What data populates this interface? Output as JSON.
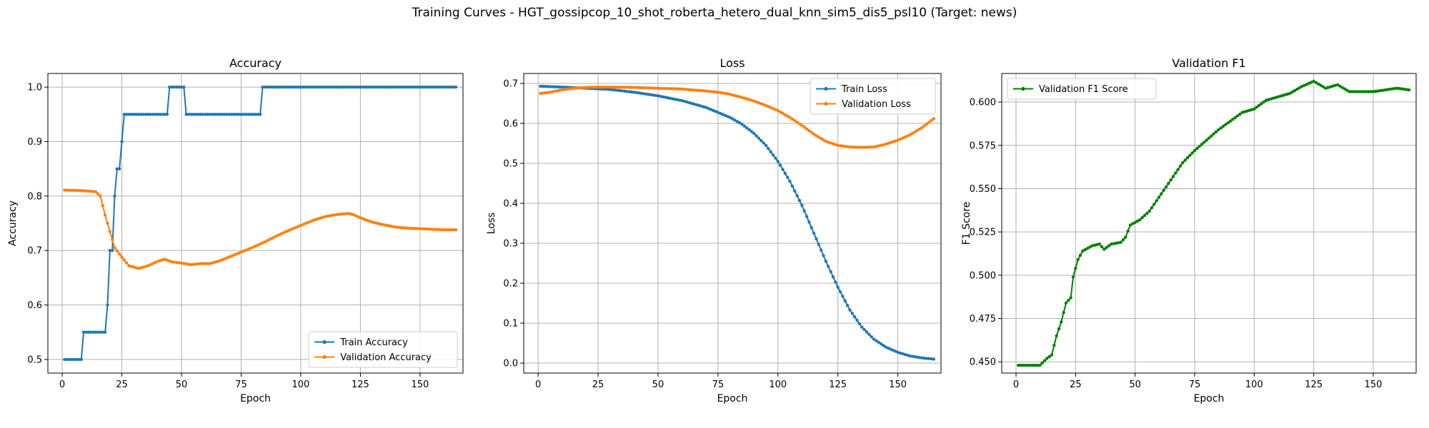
{
  "suptitle": "Training Curves - HGT_gossipcop_10_shot_roberta_hetero_dual_knn_sim5_dis5_psl10 (Target: news)",
  "colors": {
    "blue": "#1f77b4",
    "orange": "#ff7f0e",
    "green": "#008000",
    "grid": "#b0b0b0"
  },
  "chart_data": [
    {
      "type": "line",
      "title": "Accuracy",
      "xlabel": "Epoch",
      "ylabel": "Accuracy",
      "xlim": [
        -6,
        168
      ],
      "ylim": [
        0.475,
        1.025
      ],
      "xticks": [
        0,
        25,
        50,
        75,
        100,
        125,
        150
      ],
      "yticks": [
        0.5,
        0.6,
        0.7,
        0.8,
        0.9,
        1.0
      ],
      "ytick_labels": [
        "0.5",
        "0.6",
        "0.7",
        "0.8",
        "0.9",
        "1.0"
      ],
      "grid": true,
      "legend_position": "lower-right",
      "series": [
        {
          "name": "Train Accuracy",
          "color": "#1f77b4",
          "steps": [
            [
              1,
              0.5
            ],
            [
              9,
              0.55
            ],
            [
              19,
              0.6
            ],
            [
              20,
              0.7
            ],
            [
              22,
              0.8
            ],
            [
              23,
              0.85
            ],
            [
              25,
              0.9
            ],
            [
              26,
              0.95
            ],
            [
              45,
              1.0
            ],
            [
              52,
              0.95
            ],
            [
              84,
              1.0
            ],
            [
              165,
              1.0
            ]
          ]
        },
        {
          "name": "Validation Accuracy",
          "color": "#ff7f0e",
          "points": [
            [
              1,
              0.811
            ],
            [
              8,
              0.81
            ],
            [
              14,
              0.808
            ],
            [
              16,
              0.8
            ],
            [
              18,
              0.765
            ],
            [
              20,
              0.735
            ],
            [
              22,
              0.705
            ],
            [
              25,
              0.688
            ],
            [
              28,
              0.672
            ],
            [
              32,
              0.667
            ],
            [
              36,
              0.672
            ],
            [
              40,
              0.68
            ],
            [
              43,
              0.684
            ],
            [
              46,
              0.679
            ],
            [
              50,
              0.677
            ],
            [
              54,
              0.674
            ],
            [
              58,
              0.676
            ],
            [
              62,
              0.676
            ],
            [
              66,
              0.681
            ],
            [
              70,
              0.688
            ],
            [
              75,
              0.697
            ],
            [
              80,
              0.706
            ],
            [
              85,
              0.716
            ],
            [
              90,
              0.727
            ],
            [
              95,
              0.737
            ],
            [
              100,
              0.746
            ],
            [
              105,
              0.755
            ],
            [
              110,
              0.762
            ],
            [
              115,
              0.766
            ],
            [
              120,
              0.768
            ],
            [
              122,
              0.766
            ],
            [
              125,
              0.76
            ],
            [
              130,
              0.752
            ],
            [
              135,
              0.747
            ],
            [
              140,
              0.743
            ],
            [
              145,
              0.741
            ],
            [
              150,
              0.74
            ],
            [
              155,
              0.739
            ],
            [
              160,
              0.738
            ],
            [
              165,
              0.738
            ]
          ]
        }
      ]
    },
    {
      "type": "line",
      "title": "Loss",
      "xlabel": "Epoch",
      "ylabel": "Loss",
      "xlim": [
        -6,
        168
      ],
      "ylim": [
        -0.025,
        0.725
      ],
      "xticks": [
        0,
        25,
        50,
        75,
        100,
        125,
        150
      ],
      "yticks": [
        0.0,
        0.1,
        0.2,
        0.3,
        0.4,
        0.5,
        0.6,
        0.7
      ],
      "ytick_labels": [
        "0.0",
        "0.1",
        "0.2",
        "0.3",
        "0.4",
        "0.5",
        "0.6",
        "0.7"
      ],
      "grid": true,
      "legend_position": "upper-right",
      "series": [
        {
          "name": "Train Loss",
          "color": "#1f77b4",
          "points": [
            [
              1,
              0.693
            ],
            [
              10,
              0.691
            ],
            [
              20,
              0.688
            ],
            [
              30,
              0.685
            ],
            [
              40,
              0.678
            ],
            [
              50,
              0.669
            ],
            [
              60,
              0.657
            ],
            [
              70,
              0.64
            ],
            [
              80,
              0.615
            ],
            [
              85,
              0.598
            ],
            [
              90,
              0.575
            ],
            [
              95,
              0.545
            ],
            [
              100,
              0.505
            ],
            [
              105,
              0.455
            ],
            [
              110,
              0.395
            ],
            [
              115,
              0.325
            ],
            [
              120,
              0.255
            ],
            [
              125,
              0.19
            ],
            [
              130,
              0.133
            ],
            [
              135,
              0.09
            ],
            [
              140,
              0.06
            ],
            [
              145,
              0.04
            ],
            [
              150,
              0.027
            ],
            [
              155,
              0.018
            ],
            [
              160,
              0.013
            ],
            [
              165,
              0.01
            ]
          ]
        },
        {
          "name": "Validation Loss",
          "color": "#ff7f0e",
          "points": [
            [
              1,
              0.675
            ],
            [
              5,
              0.678
            ],
            [
              10,
              0.684
            ],
            [
              15,
              0.688
            ],
            [
              20,
              0.69
            ],
            [
              25,
              0.691
            ],
            [
              30,
              0.691
            ],
            [
              40,
              0.69
            ],
            [
              50,
              0.688
            ],
            [
              60,
              0.686
            ],
            [
              70,
              0.681
            ],
            [
              75,
              0.678
            ],
            [
              80,
              0.673
            ],
            [
              85,
              0.665
            ],
            [
              90,
              0.656
            ],
            [
              95,
              0.645
            ],
            [
              100,
              0.632
            ],
            [
              105,
              0.615
            ],
            [
              110,
              0.595
            ],
            [
              115,
              0.573
            ],
            [
              120,
              0.555
            ],
            [
              125,
              0.545
            ],
            [
              130,
              0.541
            ],
            [
              135,
              0.54
            ],
            [
              140,
              0.541
            ],
            [
              145,
              0.548
            ],
            [
              150,
              0.558
            ],
            [
              155,
              0.571
            ],
            [
              160,
              0.589
            ],
            [
              165,
              0.612
            ]
          ]
        }
      ]
    },
    {
      "type": "line",
      "title": "Validation F1",
      "xlabel": "Epoch",
      "ylabel": "F1 Score",
      "xlim": [
        -6,
        168
      ],
      "ylim": [
        0.4435,
        0.6165
      ],
      "xticks": [
        0,
        25,
        50,
        75,
        100,
        125,
        150
      ],
      "yticks": [
        0.45,
        0.475,
        0.5,
        0.525,
        0.55,
        0.575,
        0.6
      ],
      "ytick_labels": [
        "0.450",
        "0.475",
        "0.500",
        "0.525",
        "0.550",
        "0.575",
        "0.600"
      ],
      "grid": true,
      "legend_position": "upper-left",
      "series": [
        {
          "name": "Validation F1 Score",
          "color": "#008000",
          "points": [
            [
              1,
              0.448
            ],
            [
              5,
              0.448
            ],
            [
              10,
              0.448
            ],
            [
              13,
              0.452
            ],
            [
              15,
              0.454
            ],
            [
              17,
              0.465
            ],
            [
              19,
              0.473
            ],
            [
              21,
              0.484
            ],
            [
              23,
              0.487
            ],
            [
              24,
              0.499
            ],
            [
              26,
              0.509
            ],
            [
              28,
              0.514
            ],
            [
              32,
              0.517
            ],
            [
              35,
              0.518
            ],
            [
              37,
              0.515
            ],
            [
              40,
              0.518
            ],
            [
              44,
              0.519
            ],
            [
              46,
              0.522
            ],
            [
              48,
              0.529
            ],
            [
              52,
              0.532
            ],
            [
              56,
              0.537
            ],
            [
              60,
              0.545
            ],
            [
              65,
              0.555
            ],
            [
              70,
              0.565
            ],
            [
              75,
              0.572
            ],
            [
              80,
              0.578
            ],
            [
              85,
              0.584
            ],
            [
              90,
              0.589
            ],
            [
              95,
              0.594
            ],
            [
              100,
              0.596
            ],
            [
              105,
              0.601
            ],
            [
              110,
              0.603
            ],
            [
              115,
              0.605
            ],
            [
              120,
              0.609
            ],
            [
              125,
              0.612
            ],
            [
              130,
              0.608
            ],
            [
              135,
              0.61
            ],
            [
              140,
              0.606
            ],
            [
              145,
              0.606
            ],
            [
              150,
              0.606
            ],
            [
              155,
              0.607
            ],
            [
              160,
              0.608
            ],
            [
              165,
              0.607
            ]
          ]
        }
      ]
    }
  ]
}
